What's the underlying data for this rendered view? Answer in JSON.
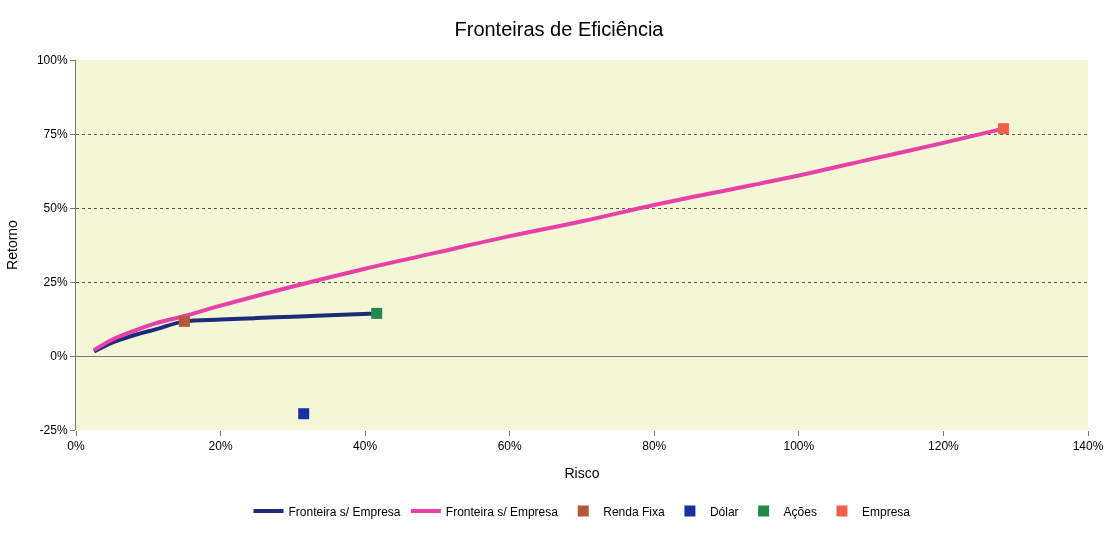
{
  "chart_data": {
    "type": "line",
    "title": "Fronteiras de Eficiência",
    "xlabel": "Risco",
    "ylabel": "Retorno",
    "series": [
      {
        "name": "Fronteira s/ Empresa",
        "marker": "none",
        "color": "#1f2a7a",
        "x": [
          2.5,
          5,
          8,
          11,
          15,
          20,
          25,
          30,
          35,
          41.6
        ],
        "values": [
          1.5,
          4.5,
          7,
          9,
          11.7,
          12.3,
          12.8,
          13.3,
          13.8,
          14.4
        ]
      },
      {
        "name": "Fronteira s/ Empresa",
        "marker": "none",
        "color": "#e83fa8",
        "x": [
          2.5,
          5,
          8,
          11,
          15,
          20,
          30,
          40,
          50,
          60,
          70,
          80,
          90,
          100,
          110,
          120,
          128.3
        ],
        "values": [
          2,
          5.5,
          8.5,
          11,
          13.5,
          17,
          23.5,
          29.5,
          35,
          40.5,
          45.5,
          51,
          56,
          61,
          66.5,
          72,
          76.8
        ]
      },
      {
        "name": "Renda Fixa",
        "type": "scatter",
        "marker": "square",
        "color": "#b5583a",
        "x": [
          15
        ],
        "values": [
          11.7
        ]
      },
      {
        "name": "Dólar",
        "type": "scatter",
        "marker": "square",
        "color": "#1c2fa0",
        "x": [
          31.5
        ],
        "values": [
          -19.5
        ]
      },
      {
        "name": "Ações",
        "type": "scatter",
        "marker": "square",
        "color": "#1f8a4a",
        "x": [
          41.6
        ],
        "values": [
          14.4
        ]
      },
      {
        "name": "Empresa",
        "type": "scatter",
        "marker": "square",
        "color": "#f0604a",
        "x": [
          128.3
        ],
        "values": [
          76.8
        ]
      }
    ],
    "xlim": [
      0,
      140
    ],
    "ylim": [
      -25,
      100
    ],
    "xticks": [
      {
        "value": 0,
        "label": "0%"
      },
      {
        "value": 20,
        "label": "20%"
      },
      {
        "value": 40,
        "label": "40%"
      },
      {
        "value": 60,
        "label": "60%"
      },
      {
        "value": 80,
        "label": "80%"
      },
      {
        "value": 100,
        "label": "100%"
      },
      {
        "value": 120,
        "label": "120%"
      },
      {
        "value": 140,
        "label": "140%"
      }
    ],
    "yticks": [
      {
        "value": -25,
        "label": "-25%"
      },
      {
        "value": 0,
        "label": "0%"
      },
      {
        "value": 25,
        "label": "25%"
      },
      {
        "value": 50,
        "label": "50%"
      },
      {
        "value": 75,
        "label": "75%"
      },
      {
        "value": 100,
        "label": "100%"
      }
    ],
    "grid": "y",
    "legend": "bottom",
    "line_style": "solid"
  }
}
